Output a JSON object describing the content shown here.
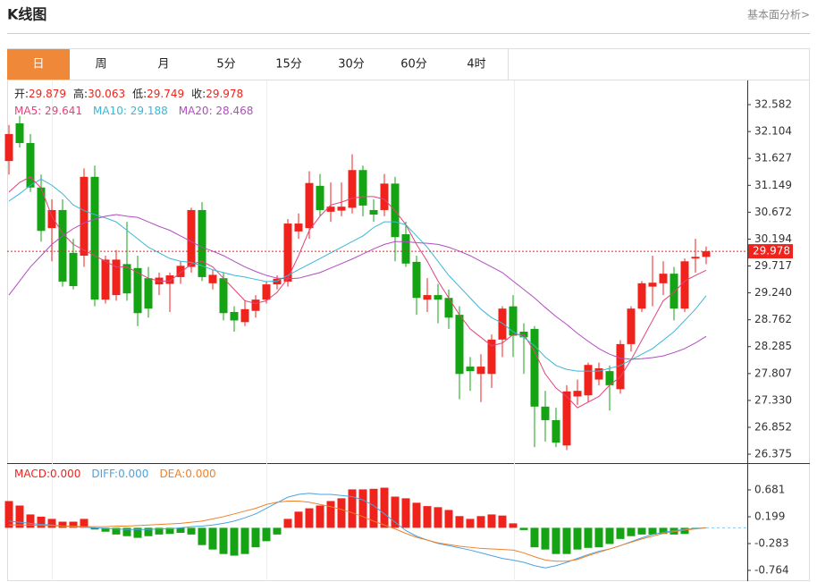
{
  "header": {
    "title": "K线图",
    "link": "基本面分析>"
  },
  "tabs": [
    "日",
    "周",
    "月",
    "5分",
    "15分",
    "30分",
    "60分",
    "4时"
  ],
  "chart_data": [
    {
      "type": "candlestick",
      "up_color": "#f0221c",
      "down_color": "#13a313",
      "ohlc_readout": [
        {
          "label": "开:",
          "value": "29.879"
        },
        {
          "label": "高:",
          "value": "30.063"
        },
        {
          "label": "低:",
          "value": "29.749"
        },
        {
          "label": "收:",
          "value": "29.978"
        }
      ],
      "open": [
        31.58,
        32.25,
        31.9,
        31.11,
        30.39,
        30.71,
        29.95,
        29.9,
        31.3,
        29.12,
        29.2,
        29.75,
        29.68,
        29.5,
        29.39,
        29.4,
        29.52,
        29.7,
        30.71,
        29.41,
        29.5,
        28.9,
        28.72,
        28.92,
        29.12,
        29.39,
        29.44,
        30.33,
        30.39,
        31.14,
        30.68,
        30.7,
        30.75,
        31.42,
        30.71,
        30.71,
        31.18,
        30.28,
        29.79,
        29.12,
        29.2,
        29.15,
        28.85,
        27.93,
        27.8,
        27.8,
        28.41,
        29.0,
        28.55,
        28.6,
        27.22,
        26.98,
        26.53,
        27.4,
        27.42,
        27.7,
        27.85,
        27.53,
        28.33,
        28.96,
        29.35,
        29.41,
        29.58,
        28.96,
        29.85,
        29.879
      ],
      "high": [
        32.22,
        32.38,
        32.06,
        31.34,
        30.9,
        30.9,
        30.2,
        31.45,
        31.5,
        29.9,
        30.0,
        30.5,
        29.9,
        29.7,
        29.6,
        29.6,
        29.8,
        30.75,
        30.85,
        29.65,
        29.6,
        29.0,
        29.1,
        29.2,
        29.45,
        29.55,
        30.55,
        30.65,
        31.4,
        31.35,
        31.2,
        31.2,
        31.7,
        31.5,
        30.9,
        31.35,
        31.3,
        30.5,
        29.9,
        29.5,
        29.4,
        29.3,
        29.0,
        28.1,
        28.15,
        28.5,
        29.0,
        29.2,
        28.7,
        28.65,
        27.5,
        27.2,
        27.6,
        27.7,
        28.0,
        28.0,
        27.95,
        28.4,
        29.0,
        29.45,
        29.9,
        29.8,
        29.7,
        29.85,
        30.2,
        30.063
      ],
      "low": [
        31.34,
        31.82,
        31.03,
        30.15,
        29.8,
        29.35,
        29.3,
        29.7,
        29.0,
        29.05,
        29.1,
        29.1,
        28.65,
        28.8,
        29.2,
        28.9,
        29.4,
        29.6,
        29.45,
        29.3,
        28.75,
        28.55,
        28.65,
        28.8,
        29.05,
        29.3,
        29.35,
        30.2,
        30.2,
        30.6,
        30.5,
        30.6,
        30.65,
        30.6,
        30.5,
        30.6,
        29.8,
        29.7,
        28.85,
        28.9,
        28.7,
        28.6,
        27.35,
        27.5,
        27.3,
        27.55,
        28.1,
        28.1,
        27.8,
        26.5,
        26.6,
        26.5,
        26.45,
        27.25,
        27.3,
        27.6,
        27.15,
        27.45,
        28.2,
        28.9,
        29.0,
        29.2,
        28.75,
        28.9,
        29.6,
        29.749
      ],
      "close": [
        32.06,
        31.9,
        31.11,
        30.34,
        30.71,
        29.44,
        29.36,
        31.3,
        29.12,
        29.83,
        29.83,
        29.23,
        28.88,
        28.96,
        29.51,
        29.55,
        29.72,
        30.71,
        29.52,
        29.56,
        28.88,
        28.75,
        28.95,
        29.12,
        29.39,
        29.49,
        30.47,
        30.47,
        31.19,
        30.71,
        30.77,
        30.77,
        31.42,
        30.79,
        30.63,
        31.18,
        30.23,
        29.76,
        29.15,
        29.2,
        29.12,
        28.8,
        27.8,
        27.85,
        27.93,
        28.41,
        28.96,
        28.48,
        28.45,
        27.22,
        26.98,
        26.58,
        27.49,
        27.5,
        27.96,
        27.9,
        27.6,
        28.33,
        28.96,
        29.41,
        29.42,
        29.58,
        28.96,
        29.8,
        29.88,
        29.978
      ],
      "series": [
        {
          "name": "MA5",
          "readout": "MA5: 29.641",
          "color": "#e2437b",
          "values": [
            31.03,
            31.2,
            31.3,
            31.1,
            30.6,
            30.3,
            30.1,
            30.0,
            29.9,
            29.8,
            29.7,
            29.7,
            29.6,
            29.5,
            29.45,
            29.45,
            29.6,
            29.75,
            29.8,
            29.7,
            29.5,
            29.3,
            29.1,
            29.05,
            29.1,
            29.25,
            29.5,
            29.9,
            30.35,
            30.6,
            30.8,
            30.85,
            30.92,
            30.95,
            30.95,
            30.9,
            30.7,
            30.45,
            30.1,
            29.8,
            29.45,
            29.15,
            28.85,
            28.6,
            28.45,
            28.3,
            28.35,
            28.5,
            28.5,
            28.2,
            27.8,
            27.55,
            27.4,
            27.2,
            27.3,
            27.4,
            27.6,
            27.75,
            28.05,
            28.4,
            28.75,
            29.1,
            29.25,
            29.45,
            29.55,
            29.641
          ]
        },
        {
          "name": "MA10",
          "readout": "MA10: 29.188",
          "color": "#3ab7d8",
          "values": [
            30.87,
            31.0,
            31.15,
            31.26,
            31.15,
            31.0,
            30.8,
            30.7,
            30.63,
            30.57,
            30.5,
            30.35,
            30.2,
            30.05,
            29.95,
            29.85,
            29.8,
            29.78,
            29.72,
            29.65,
            29.6,
            29.55,
            29.52,
            29.48,
            29.44,
            29.45,
            29.55,
            29.65,
            29.75,
            29.85,
            29.95,
            30.05,
            30.15,
            30.25,
            30.4,
            30.5,
            30.5,
            30.45,
            30.25,
            30.05,
            29.8,
            29.55,
            29.35,
            29.15,
            28.95,
            28.8,
            28.7,
            28.55,
            28.45,
            28.3,
            28.1,
            27.95,
            27.88,
            27.85,
            27.85,
            27.85,
            27.9,
            27.95,
            28.05,
            28.15,
            28.25,
            28.4,
            28.55,
            28.75,
            28.95,
            29.188
          ]
        },
        {
          "name": "MA20",
          "readout": "MA20: 28.468",
          "color": "#b24cc2",
          "values": [
            29.2,
            29.45,
            29.7,
            29.9,
            30.1,
            30.25,
            30.38,
            30.48,
            30.55,
            30.6,
            30.63,
            30.6,
            30.58,
            30.5,
            30.42,
            30.35,
            30.25,
            30.15,
            30.05,
            29.98,
            29.9,
            29.8,
            29.7,
            29.62,
            29.55,
            29.5,
            29.49,
            29.5,
            29.55,
            29.6,
            29.68,
            29.76,
            29.84,
            29.93,
            30.02,
            30.1,
            30.15,
            30.15,
            30.13,
            30.12,
            30.1,
            30.05,
            29.98,
            29.9,
            29.8,
            29.7,
            29.6,
            29.45,
            29.3,
            29.15,
            28.98,
            28.82,
            28.68,
            28.52,
            28.38,
            28.25,
            28.15,
            28.08,
            28.06,
            28.07,
            28.09,
            28.12,
            28.18,
            28.25,
            28.35,
            28.468
          ]
        }
      ],
      "last_price": 29.978,
      "last_color": "#f0221c",
      "ylim": [
        26.217,
        33.011
      ],
      "yticks": [
        32.582,
        32.104,
        31.627,
        31.149,
        30.672,
        30.194,
        29.717,
        {
          "value": 29.24,
          "label": "29.240"
        },
        28.762,
        28.285,
        27.807,
        {
          "value": 27.33,
          "label": "27.330"
        },
        26.852,
        26.375
      ]
    },
    {
      "type": "macd",
      "ylim": [
        -0.957,
        1.13
      ],
      "yticks": [
        0.681,
        0.199,
        -0.283,
        -0.764
      ],
      "up_color": "#f0221c",
      "down_color": "#13a313",
      "series": [
        {
          "name": "MACD",
          "readout": "MACD:0.000",
          "color": "#f0221c",
          "kind": "bar",
          "values": [
            0.48,
            0.4,
            0.24,
            0.2,
            0.16,
            0.11,
            0.11,
            0.16,
            -0.03,
            -0.07,
            -0.12,
            -0.15,
            -0.18,
            -0.15,
            -0.12,
            -0.11,
            -0.09,
            -0.12,
            -0.31,
            -0.39,
            -0.47,
            -0.5,
            -0.47,
            -0.35,
            -0.24,
            -0.12,
            0.16,
            0.29,
            0.35,
            0.4,
            0.48,
            0.53,
            0.69,
            0.69,
            0.7,
            0.72,
            0.56,
            0.53,
            0.45,
            0.39,
            0.37,
            0.32,
            0.21,
            0.16,
            0.21,
            0.24,
            0.22,
            0.08,
            -0.04,
            -0.35,
            -0.39,
            -0.47,
            -0.47,
            -0.39,
            -0.36,
            -0.35,
            -0.29,
            -0.2,
            -0.15,
            -0.12,
            -0.12,
            -0.11,
            -0.12,
            -0.11,
            -0.01,
            0.0
          ]
        },
        {
          "name": "DIFF",
          "readout": "DIFF:0.000",
          "color": "#4aa3df",
          "kind": "line",
          "values": [
            0.12,
            0.1,
            0.08,
            0.06,
            0.05,
            0.03,
            0.02,
            0.01,
            0.0,
            -0.01,
            -0.02,
            -0.03,
            -0.03,
            -0.03,
            -0.02,
            -0.02,
            0.0,
            0.02,
            0.03,
            0.05,
            0.08,
            0.12,
            0.18,
            0.25,
            0.35,
            0.45,
            0.55,
            0.6,
            0.62,
            0.6,
            0.6,
            0.58,
            0.56,
            0.5,
            0.4,
            0.25,
            0.1,
            -0.05,
            -0.15,
            -0.22,
            -0.28,
            -0.32,
            -0.36,
            -0.4,
            -0.45,
            -0.5,
            -0.55,
            -0.58,
            -0.62,
            -0.68,
            -0.72,
            -0.68,
            -0.62,
            -0.55,
            -0.48,
            -0.42,
            -0.38,
            -0.32,
            -0.25,
            -0.18,
            -0.12,
            -0.08,
            -0.05,
            -0.03,
            -0.01,
            0.0
          ]
        },
        {
          "name": "DEA",
          "readout": "DEA:0.000",
          "color": "#f0802a",
          "kind": "line",
          "values": [
            0.05,
            0.05,
            0.05,
            0.04,
            0.04,
            0.03,
            0.03,
            0.02,
            0.02,
            0.02,
            0.03,
            0.03,
            0.04,
            0.05,
            0.06,
            0.07,
            0.08,
            0.1,
            0.12,
            0.16,
            0.2,
            0.25,
            0.3,
            0.35,
            0.42,
            0.46,
            0.48,
            0.48,
            0.46,
            0.42,
            0.38,
            0.33,
            0.27,
            0.2,
            0.12,
            0.05,
            -0.02,
            -0.1,
            -0.17,
            -0.22,
            -0.27,
            -0.3,
            -0.33,
            -0.35,
            -0.37,
            -0.38,
            -0.39,
            -0.4,
            -0.45,
            -0.52,
            -0.58,
            -0.6,
            -0.6,
            -0.57,
            -0.5,
            -0.44,
            -0.38,
            -0.32,
            -0.26,
            -0.2,
            -0.15,
            -0.1,
            -0.07,
            -0.04,
            -0.02,
            0.0
          ]
        }
      ]
    }
  ]
}
